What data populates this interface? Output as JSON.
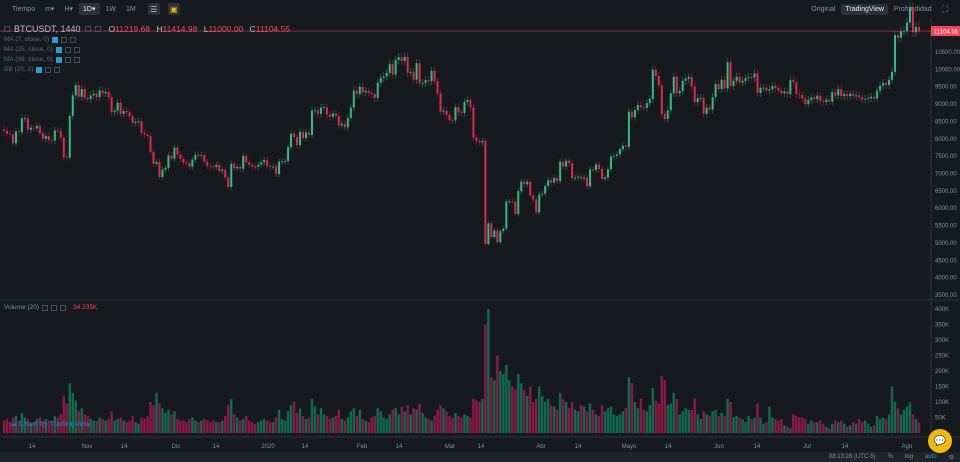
{
  "toolbar": {
    "time_label": "Tiempo",
    "intervals": [
      "m▾",
      "H▾",
      "1D▾",
      "1W",
      "1M"
    ],
    "active_interval": "1D▾",
    "icons": [
      "settings-sliders-icon",
      "indicator-icon"
    ]
  },
  "views": {
    "items": [
      "Original",
      "TradingView",
      "Profundidad"
    ],
    "active": "TradingView",
    "fullscreen_icon": "fullscreen-icon"
  },
  "legend": {
    "symbol": "BTCUSDT, 1440",
    "o_label": "O",
    "o": "11219.68",
    "h_label": "H",
    "h": "11414.98",
    "l_label": "L",
    "l": "11000.00",
    "c_label": "C",
    "c": "11104.55"
  },
  "indicators": [
    "MA (7, close, 0)",
    "MA (25, close, 0)",
    "MA (99, close, 0)",
    "BB (20, 2)"
  ],
  "volume_legend": {
    "label": "Volume (20)",
    "value": "34.235K"
  },
  "watermark": "Chart by TradingView",
  "status": {
    "time": "08:13:28 (UTC-5)",
    "percent": "%",
    "log": "log",
    "auto": "auto"
  },
  "colors": {
    "background": "#161a1e",
    "up": "#2ebd85",
    "down": "#e0294a",
    "vol_up": "#0f6b4e",
    "vol_down": "#8a1a45",
    "accent": "#f0b90b",
    "last_price": "#f6465d"
  },
  "chart_data": {
    "type": "candlestick",
    "symbol": "BTCUSDT",
    "interval": "1D",
    "last_price": "11104.55",
    "price_ticks": [
      "10500.00",
      "10000.00",
      "9500.00",
      "9000.00",
      "8500.00",
      "8000.00",
      "7500.00",
      "7000.00",
      "6500.00",
      "6000.00",
      "5500.00",
      "5000.00",
      "4500.00",
      "4000.00",
      "3500.00"
    ],
    "ylim": [
      3500,
      11500
    ],
    "volume_ticks": [
      "400K",
      "350K",
      "300K",
      "250K",
      "200K",
      "150K",
      "100K",
      "50K"
    ],
    "volume_ylim": [
      0,
      400
    ],
    "time_ticks": [
      "14",
      "Nov",
      "14",
      "Dic",
      "14",
      "2020",
      "14",
      "Feb",
      "14",
      "Mar",
      "14",
      "Abr",
      "14",
      "Mayo",
      "14",
      "Jun",
      "14",
      "Jul",
      "14",
      "Ago"
    ],
    "last_candle": {
      "open": 11219.68,
      "high": 11414.98,
      "low": 11000.0,
      "close": 11104.55
    },
    "closes": [
      8230,
      8150,
      8130,
      7870,
      8210,
      8190,
      8590,
      8590,
      8260,
      8320,
      8300,
      8370,
      8160,
      8000,
      8080,
      7960,
      7950,
      8240,
      8230,
      8030,
      7470,
      7460,
      8660,
      9250,
      9550,
      9210,
      9430,
      9180,
      9150,
      9250,
      9300,
      9200,
      9400,
      9310,
      9350,
      9200,
      8770,
      8810,
      9040,
      8720,
      8800,
      8760,
      8650,
      8460,
      8490,
      8500,
      8170,
      8120,
      8080,
      7620,
      7280,
      7330,
      6900,
      7110,
      7160,
      7520,
      7430,
      7750,
      7550,
      7420,
      7310,
      7300,
      7200,
      7400,
      7540,
      7510,
      7530,
      7340,
      7220,
      7200,
      7190,
      7250,
      7070,
      7110,
      6880,
      6610,
      7280,
      7150,
      7190,
      7140,
      7510,
      7320,
      7250,
      7200,
      7190,
      7250,
      7320,
      7390,
      7220,
      7190,
      7200,
      6980,
      7340,
      7350,
      7360,
      7760,
      8150,
      8050,
      7820,
      8200,
      8020,
      8180,
      8110,
      8810,
      8820,
      8720,
      8900,
      8910,
      8700,
      8630,
      8730,
      8660,
      8390,
      8430,
      8330,
      8600,
      8900,
      9390,
      9290,
      9500,
      9340,
      9380,
      9330,
      9290,
      9180,
      9610,
      9760,
      9800,
      9900,
      10150,
      9850,
      10270,
      10350,
      10240,
      10360,
      9900,
      9930,
      9700,
      10180,
      9600,
      9610,
      9690,
      9660,
      9960,
      9660,
      9310,
      8780,
      8810,
      8690,
      8540,
      8530,
      8910,
      8760,
      8750,
      9060,
      9120,
      8900,
      8030,
      7930,
      7900,
      7940,
      4970,
      5560,
      5170,
      5360,
      5020,
      5340,
      5410,
      6190,
      6200,
      6190,
      5830,
      6490,
      6770,
      6690,
      6760,
      6370,
      6250,
      5880,
      6400,
      6420,
      6640,
      6810,
      6740,
      6870,
      6780,
      7340,
      7200,
      7370,
      7300,
      6870,
      6880,
      6910,
      6860,
      6880,
      6630,
      7120,
      7100,
      7260,
      7130,
      6840,
      6880,
      7120,
      7490,
      7510,
      7550,
      7700,
      7800,
      7770,
      8780,
      8620,
      8830,
      8970,
      8910,
      8890,
      9030,
      9150,
      9990,
      9810,
      9540,
      8720,
      8570,
      8820,
      9310,
      9790,
      9310,
      9380,
      9670,
      9730,
      9780,
      9510,
      9060,
      9170,
      9180,
      8720,
      8900,
      8840,
      9200,
      9580,
      9430,
      9700,
      9450,
      10200,
      9520,
      9670,
      9790,
      9620,
      9670,
      9750,
      9780,
      9770,
      9880,
      9320,
      9470,
      9470,
      9390,
      9430,
      9520,
      9460,
      9390,
      9310,
      9360,
      9290,
      9690,
      9630,
      9290,
      9260,
      9160,
      9000,
      9120,
      9190,
      9140,
      9240,
      9090,
      9060,
      9130,
      9070,
      9340,
      9250,
      9430,
      9230,
      9290,
      9230,
      9300,
      9240,
      9250,
      9200,
      9130,
      9150,
      9170,
      9210,
      9160,
      9390,
      9530,
      9610,
      9550,
      9700,
      9930,
      10990,
      10910,
      11100,
      11110,
      11350,
      11800,
      11070,
      11219.68,
      11104.55
    ],
    "volumes_k": [
      40,
      45,
      35,
      50,
      55,
      40,
      65,
      50,
      45,
      30,
      35,
      45,
      50,
      40,
      45,
      40,
      35,
      55,
      50,
      60,
      120,
      95,
      160,
      130,
      105,
      70,
      80,
      60,
      55,
      45,
      40,
      40,
      50,
      45,
      40,
      45,
      70,
      40,
      45,
      50,
      40,
      35,
      40,
      55,
      35,
      30,
      50,
      45,
      55,
      100,
      90,
      130,
      95,
      80,
      65,
      75,
      60,
      70,
      45,
      40,
      40,
      35,
      45,
      50,
      40,
      35,
      40,
      45,
      40,
      35,
      40,
      35,
      35,
      40,
      55,
      90,
      110,
      60,
      50,
      40,
      45,
      55,
      40,
      35,
      30,
      35,
      40,
      45,
      40,
      35,
      35,
      50,
      75,
      45,
      40,
      70,
      90,
      100,
      65,
      80,
      55,
      45,
      50,
      110,
      85,
      60,
      80,
      60,
      55,
      45,
      50,
      55,
      75,
      45,
      40,
      50,
      70,
      80,
      55,
      75,
      45,
      40,
      35,
      50,
      55,
      80,
      70,
      50,
      45,
      60,
      75,
      80,
      60,
      85,
      70,
      90,
      60,
      80,
      75,
      95,
      65,
      50,
      45,
      40,
      55,
      75,
      90,
      80,
      70,
      55,
      50,
      65,
      55,
      50,
      60,
      55,
      50,
      110,
      105,
      100,
      110,
      350,
      400,
      180,
      170,
      250,
      200,
      190,
      220,
      170,
      150,
      140,
      190,
      160,
      140,
      120,
      150,
      100,
      110,
      150,
      120,
      100,
      110,
      90,
      85,
      75,
      130,
      110,
      100,
      80,
      100,
      75,
      70,
      90,
      85,
      70,
      95,
      75,
      60,
      55,
      90,
      70,
      80,
      85,
      60,
      55,
      60,
      70,
      80,
      180,
      160,
      100,
      80,
      110,
      75,
      70,
      90,
      145,
      105,
      95,
      185,
      170,
      90,
      95,
      130,
      110,
      60,
      70,
      80,
      75,
      75,
      110,
      60,
      45,
      70,
      60,
      55,
      70,
      75,
      55,
      65,
      55,
      110,
      100,
      50,
      55,
      50,
      45,
      35,
      55,
      45,
      50,
      95,
      50,
      30,
      35,
      85,
      50,
      45,
      40,
      45,
      25,
      20,
      15,
      60,
      55,
      50,
      50,
      45,
      30,
      40,
      35,
      35,
      40,
      30,
      20,
      15,
      30,
      40,
      35,
      40,
      30,
      20,
      25,
      35,
      30,
      45,
      35,
      40,
      30,
      20,
      25,
      55,
      45,
      50,
      45,
      60,
      150,
      100,
      80,
      60,
      75,
      85,
      100,
      60,
      45,
      34.235
    ]
  }
}
